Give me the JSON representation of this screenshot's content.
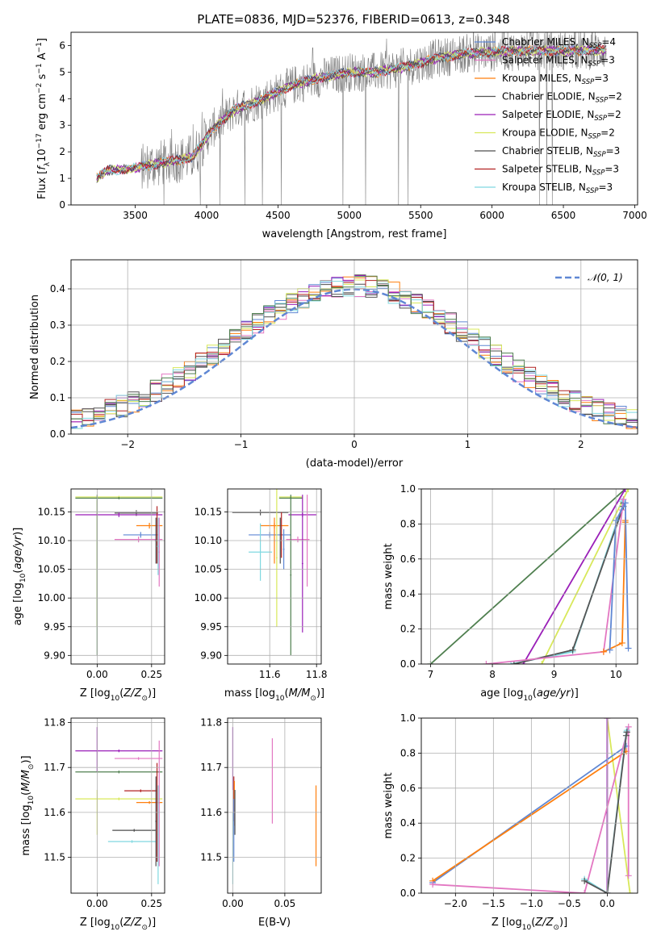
{
  "figure_title": "PLATE=0836, MJD=52376, FIBERID=0613, z=0.348",
  "colors": {
    "Chabrier MILES": "#5f87d4",
    "Salpeter MILES": "#e377c2",
    "Kroupa MILES": "#ff7f0e",
    "Chabrier ELODIE": "#555555",
    "Salpeter ELODIE": "#9a1fb8",
    "Kroupa ELODIE": "#d8e85a",
    "Chabrier STELIB": "#4d4d4d",
    "Salpeter STELIB": "#b22222",
    "Kroupa STELIB": "#7fd8e0",
    "extra_green": "#4f7f4f",
    "spectrum": "#7f7f7f",
    "gaussian": "#5f87d4"
  },
  "chart_data": [
    {
      "id": "spectrum",
      "type": "line",
      "xlabel": "wavelength [Angstrom, rest frame]",
      "ylabel": "Flux [f_λ 10^-17 erg cm^-2 s^-1 A^-1]",
      "xlim": [
        3050,
        7020
      ],
      "ylim": [
        0,
        6.5
      ],
      "xticks": [
        3500,
        4000,
        4500,
        5000,
        5500,
        6000,
        6500,
        7000
      ],
      "yticks": [
        0,
        1,
        2,
        3,
        4,
        5,
        6
      ],
      "grid": false,
      "legend_position": "right",
      "data_coverage": [
        3230,
        6800
      ],
      "trend": {
        "x": [
          3230,
          3300,
          3450,
          3560,
          3700,
          3900,
          4050,
          4200,
          4400,
          4600,
          4800,
          5000,
          5200,
          5400,
          5600,
          5800,
          6000,
          6200,
          6400,
          6600,
          6800
        ],
        "y": [
          1.0,
          1.3,
          1.35,
          1.45,
          1.6,
          1.8,
          2.9,
          3.6,
          4.0,
          4.5,
          4.8,
          5.0,
          5.0,
          5.2,
          5.5,
          5.7,
          5.75,
          5.8,
          5.8,
          5.8,
          5.85
        ]
      },
      "legend": [
        {
          "label": "Chabrier MILES, N",
          "n": "4"
        },
        {
          "label": "Salpeter MILES, N",
          "n": "3"
        },
        {
          "label": "Kroupa MILES, N",
          "n": "3"
        },
        {
          "label": "Chabrier ELODIE, N",
          "n": "2"
        },
        {
          "label": "Salpeter ELODIE, N",
          "n": "2"
        },
        {
          "label": "Kroupa ELODIE, N",
          "n": "2"
        },
        {
          "label": "Chabrier STELIB, N",
          "n": "3"
        },
        {
          "label": "Salpeter STELIB, N",
          "n": "3"
        },
        {
          "label": "Kroupa STELIB, N",
          "n": "3"
        }
      ],
      "legend_subscript": "SSP"
    },
    {
      "id": "residuals",
      "type": "bar",
      "xlabel": "(data-model)/error",
      "ylabel": "Normed distribution",
      "xlim": [
        -2.5,
        2.5
      ],
      "ylim": [
        0,
        0.48
      ],
      "xticks": [
        -2,
        -1,
        0,
        1,
        2
      ],
      "yticks": [
        0.0,
        0.1,
        0.2,
        0.3,
        0.4
      ],
      "grid": true,
      "bin_width": 0.1,
      "legend": [
        "𝒩(0, 1)"
      ],
      "legend_position": "top-right"
    },
    {
      "id": "age_vs_Z",
      "type": "scatter",
      "xlabel": "Z [log10(Z/Z⊙)]",
      "ylabel": "age  [log10(age/yr)]",
      "xlim": [
        -0.12,
        0.31
      ],
      "ylim": [
        9.885,
        10.19
      ],
      "xticks": [
        0.0,
        0.25
      ],
      "yticks": [
        9.9,
        9.95,
        10.0,
        10.05,
        10.1,
        10.15
      ],
      "grid": true,
      "series": [
        {
          "c": "#d8e85a",
          "x": 0.1,
          "xerr": 0.2,
          "y": 10.176,
          "yerr": 0.002
        },
        {
          "c": "#4f7f4f",
          "x": 0.1,
          "xerr": 0.2,
          "y": 10.174,
          "yerr": 0.002
        },
        {
          "c": "#d8e85a",
          "x": 0.0,
          "xerr": 0.0,
          "y": 10.06,
          "yerr": 0.11
        },
        {
          "c": "#4f7f4f",
          "x": 0.0,
          "xerr": 0.0,
          "y": 10.04,
          "yerr": 0.14
        },
        {
          "c": "#555555",
          "x": 0.18,
          "xerr": 0.1,
          "y": 10.148,
          "yerr": 0.005
        },
        {
          "c": "#9a1fb8",
          "x": 0.1,
          "xerr": 0.2,
          "y": 10.145,
          "yerr": 0.004
        },
        {
          "c": "#ff7f0e",
          "x": 0.24,
          "xerr": 0.06,
          "y": 10.126,
          "yerr": 0.005
        },
        {
          "c": "#5f87d4",
          "x": 0.2,
          "xerr": 0.08,
          "y": 10.11,
          "yerr": 0.005
        },
        {
          "c": "#e377c2",
          "x": 0.19,
          "xerr": 0.11,
          "y": 10.102,
          "yerr": 0.005
        },
        {
          "c": "#b22222",
          "x": 0.275,
          "xerr": 0.005,
          "y": 10.11,
          "yerr": 0.05
        },
        {
          "c": "#4d4d4d",
          "x": 0.27,
          "xerr": 0.005,
          "y": 10.1,
          "yerr": 0.04
        },
        {
          "c": "#7fd8e0",
          "x": 0.28,
          "xerr": 0.005,
          "y": 10.09,
          "yerr": 0.05
        },
        {
          "c": "#e377c2",
          "x": 0.285,
          "xerr": 0.003,
          "y": 10.08,
          "yerr": 0.06
        }
      ]
    },
    {
      "id": "age_vs_mass",
      "type": "scatter",
      "xlabel": "mass [log10(M/M⊙)]",
      "ylabel": "",
      "xlim": [
        11.42,
        11.82
      ],
      "ylim": [
        9.885,
        10.19
      ],
      "xticks": [
        11.6,
        11.8
      ],
      "yticks": [
        9.9,
        9.95,
        10.0,
        10.05,
        10.1,
        10.15
      ],
      "grid": true,
      "series": [
        {
          "c": "#d8e85a",
          "x": 11.69,
          "xerr": 0.05,
          "y": 10.176,
          "yerr": 0.002
        },
        {
          "c": "#4f7f4f",
          "x": 11.69,
          "xerr": 0.05,
          "y": 10.174,
          "yerr": 0.002
        },
        {
          "c": "#555555",
          "x": 11.56,
          "xerr": 0.12,
          "y": 10.149,
          "yerr": 0.005
        },
        {
          "c": "#9a1fb8",
          "x": 11.74,
          "xerr": 0.06,
          "y": 10.145,
          "yerr": 0.004
        },
        {
          "c": "#ff7f0e",
          "x": 11.62,
          "xerr": 0.06,
          "y": 10.126,
          "yerr": 0.005
        },
        {
          "c": "#5f87d4",
          "x": 11.6,
          "xerr": 0.09,
          "y": 10.11,
          "yerr": 0.005
        },
        {
          "c": "#e377c2",
          "x": 11.72,
          "xerr": 0.05,
          "y": 10.102,
          "yerr": 0.005
        },
        {
          "c": "#7fd8e0",
          "x": 11.56,
          "xerr": 0.05,
          "y": 10.08,
          "yerr": 0.05
        },
        {
          "c": "#d8e85a",
          "x": 11.63,
          "xerr": 0.003,
          "y": 10.07,
          "yerr": 0.12
        },
        {
          "c": "#b22222",
          "x": 11.65,
          "xerr": 0.003,
          "y": 10.11,
          "yerr": 0.04
        },
        {
          "c": "#ff7f0e",
          "x": 11.62,
          "xerr": 0.003,
          "y": 10.1,
          "yerr": 0.04
        },
        {
          "c": "#4d4d4d",
          "x": 11.645,
          "xerr": 0.003,
          "y": 10.1,
          "yerr": 0.04
        },
        {
          "c": "#5f87d4",
          "x": 11.66,
          "xerr": 0.003,
          "y": 10.085,
          "yerr": 0.035
        },
        {
          "c": "#4f7f4f",
          "x": 11.69,
          "xerr": 0.003,
          "y": 10.04,
          "yerr": 0.14
        },
        {
          "c": "#9a1fb8",
          "x": 11.74,
          "xerr": 0.003,
          "y": 10.06,
          "yerr": 0.12
        },
        {
          "c": "#e377c2",
          "x": 11.76,
          "xerr": 0.003,
          "y": 10.1,
          "yerr": 0.08
        }
      ]
    },
    {
      "id": "cum_mass_vs_age",
      "type": "line",
      "xlabel": "age  [log10(age/yr)]",
      "ylabel": "mass weight",
      "xlim": [
        6.85,
        10.35
      ],
      "ylim": [
        0,
        1.0
      ],
      "xticks": [
        7,
        8,
        9,
        10
      ],
      "yticks": [
        0.0,
        0.2,
        0.4,
        0.6,
        0.8,
        1.0
      ],
      "grid": true,
      "series": [
        {
          "c": "#4f7f4f",
          "x": [
            7.0,
            10.15
          ],
          "y": [
            0.0,
            1.0
          ]
        },
        {
          "c": "#9a1fb8",
          "x": [
            8.5,
            10.15
          ],
          "y": [
            0.0,
            1.0
          ]
        },
        {
          "c": "#d8e85a",
          "x": [
            8.8,
            10.2
          ],
          "y": [
            0.0,
            1.0
          ]
        },
        {
          "c": "#7fd8e0",
          "x": [
            8.3,
            9.3,
            10.1,
            10.1
          ],
          "y": [
            0.0,
            0.07,
            0.9,
            0.93
          ]
        },
        {
          "c": "#555555",
          "x": [
            8.35,
            9.3,
            10.12,
            10.12
          ],
          "y": [
            0.0,
            0.08,
            0.9,
            0.92
          ]
        },
        {
          "c": "#e377c2",
          "x": [
            7.9,
            9.8,
            10.1,
            10.12
          ],
          "y": [
            0.0,
            0.07,
            0.88,
            0.94
          ]
        },
        {
          "c": "#ff7f0e",
          "x": [
            9.8,
            10.1,
            10.15,
            10.15
          ],
          "y": [
            0.07,
            0.12,
            0.81,
            0.82
          ]
        },
        {
          "c": "#5f87d4",
          "x": [
            9.9,
            10.0,
            10.15,
            10.2
          ],
          "y": [
            0.08,
            0.82,
            0.92,
            0.09
          ]
        }
      ]
    },
    {
      "id": "mass_vs_Z",
      "type": "scatter",
      "xlabel": "Z [log10(Z/Z⊙)]",
      "ylabel": "mass [log10(M/M⊙)]",
      "xlim": [
        -0.12,
        0.31
      ],
      "ylim": [
        11.42,
        11.81
      ],
      "xticks": [
        0.0,
        0.25
      ],
      "yticks": [
        11.5,
        11.6,
        11.7,
        11.8
      ],
      "grid": true,
      "series": [
        {
          "c": "#9a1fb8",
          "x": 0.1,
          "xerr": 0.2,
          "y": 11.737,
          "yerr": 0.003
        },
        {
          "c": "#9a1fb8",
          "x": 0.0,
          "xerr": 0.0,
          "y": 11.74,
          "yerr": 0.05
        },
        {
          "c": "#e377c2",
          "x": 0.19,
          "xerr": 0.11,
          "y": 11.72,
          "yerr": 0.003
        },
        {
          "c": "#4f7f4f",
          "x": 0.1,
          "xerr": 0.2,
          "y": 11.69,
          "yerr": 0.003
        },
        {
          "c": "#b22222",
          "x": 0.2,
          "xerr": 0.075,
          "y": 11.648,
          "yerr": 0.003
        },
        {
          "c": "#d8e85a",
          "x": 0.1,
          "xerr": 0.2,
          "y": 11.63,
          "yerr": 0.003
        },
        {
          "c": "#ff7f0e",
          "x": 0.24,
          "xerr": 0.06,
          "y": 11.622,
          "yerr": 0.003
        },
        {
          "c": "#4d4d4d",
          "x": 0.17,
          "xerr": 0.1,
          "y": 11.56,
          "yerr": 0.003
        },
        {
          "c": "#7fd8e0",
          "x": 0.16,
          "xerr": 0.11,
          "y": 11.535,
          "yerr": 0.003
        },
        {
          "c": "#d8e85a",
          "x": 0.0,
          "xerr": 0.0,
          "y": 11.6,
          "yerr": 0.05
        },
        {
          "c": "#e377c2",
          "x": 0.285,
          "xerr": 0.003,
          "y": 11.62,
          "yerr": 0.14
        },
        {
          "c": "#b22222",
          "x": 0.275,
          "xerr": 0.003,
          "y": 11.6,
          "yerr": 0.11
        },
        {
          "c": "#4d4d4d",
          "x": 0.27,
          "xerr": 0.003,
          "y": 11.58,
          "yerr": 0.1
        },
        {
          "c": "#7fd8e0",
          "x": 0.28,
          "xerr": 0.003,
          "y": 11.55,
          "yerr": 0.11
        }
      ]
    },
    {
      "id": "mass_vs_ebv",
      "type": "scatter",
      "xlabel": "E(B-V)",
      "ylabel": "",
      "xlim": [
        -0.005,
        0.085
      ],
      "ylim": [
        11.42,
        11.81
      ],
      "xticks": [
        0.0,
        0.05
      ],
      "yticks": [
        11.5,
        11.6,
        11.7,
        11.8
      ],
      "grid": true,
      "series": [
        {
          "c": "#9a1fb8",
          "x": 0.0,
          "xerr": 0.0,
          "y": 11.72,
          "yerr": 0.07
        },
        {
          "c": "#b22222",
          "x": 0.001,
          "xerr": 0.0,
          "y": 11.63,
          "yerr": 0.05
        },
        {
          "c": "#ff7f0e",
          "x": 0.0015,
          "xerr": 0.0,
          "y": 11.62,
          "yerr": 0.05
        },
        {
          "c": "#4d4d4d",
          "x": 0.002,
          "xerr": 0.0,
          "y": 11.6,
          "yerr": 0.05
        },
        {
          "c": "#5f87d4",
          "x": 0.001,
          "xerr": 0.0,
          "y": 11.56,
          "yerr": 0.07
        },
        {
          "c": "#7fd8e0",
          "x": 0.0,
          "xerr": 0.0,
          "y": 11.52,
          "yerr": 0.08
        },
        {
          "c": "#e377c2",
          "x": 0.038,
          "xerr": 0.0,
          "y": 11.67,
          "yerr": 0.095
        },
        {
          "c": "#ff7f0e",
          "x": 0.08,
          "xerr": 0.0,
          "y": 11.57,
          "yerr": 0.09
        }
      ]
    },
    {
      "id": "cum_mass_vs_Z",
      "type": "line",
      "xlabel": "Z [log10(Z/Z⊙)]",
      "ylabel": "mass weight",
      "xlim": [
        -2.45,
        0.4
      ],
      "ylim": [
        0,
        1.0
      ],
      "xticks": [
        -2.0,
        -1.5,
        -1.0,
        -0.5,
        0.0
      ],
      "yticks": [
        0.0,
        0.2,
        0.4,
        0.6,
        0.8,
        1.0
      ],
      "grid": true,
      "series": [
        {
          "c": "#d8e85a",
          "x": [
            0.0,
            0.3
          ],
          "y": [
            1.0,
            0.0
          ]
        },
        {
          "c": "#9a1fb8",
          "x": [
            0.0,
            0.0
          ],
          "y": [
            0.0,
            1.0
          ]
        },
        {
          "c": "#5f87d4",
          "x": [
            -2.3,
            0.25
          ],
          "y": [
            0.06,
            0.84
          ]
        },
        {
          "c": "#ff7f0e",
          "x": [
            -2.3,
            0.25
          ],
          "y": [
            0.07,
            0.81
          ]
        },
        {
          "c": "#e377c2",
          "x": [
            -2.3,
            -0.3,
            0.28,
            0.28
          ],
          "y": [
            0.05,
            0.0,
            0.95,
            0.1
          ]
        },
        {
          "c": "#7fd8e0",
          "x": [
            -0.3,
            0.0,
            0.25,
            0.26
          ],
          "y": [
            0.08,
            0.0,
            0.92,
            0.93
          ]
        },
        {
          "c": "#555555",
          "x": [
            -0.3,
            0.0,
            0.25,
            0.26
          ],
          "y": [
            0.07,
            0.0,
            0.9,
            0.92
          ]
        }
      ]
    }
  ]
}
